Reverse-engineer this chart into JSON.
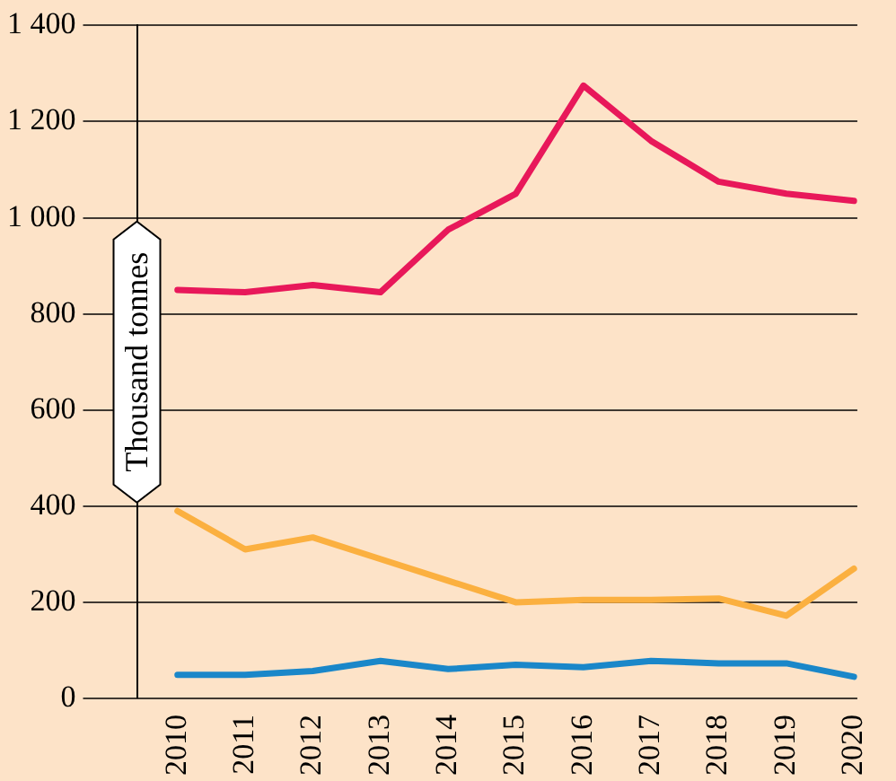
{
  "chart_data": {
    "type": "line",
    "ylabel": "Thousand tonnes",
    "x": [
      2010,
      2011,
      2012,
      2013,
      2014,
      2015,
      2016,
      2017,
      2018,
      2019,
      2020
    ],
    "xlim": [
      2009.4,
      2020.05
    ],
    "xticks": [
      2010,
      2011,
      2012,
      2013,
      2014,
      2015,
      2016,
      2017,
      2018,
      2019,
      2020
    ],
    "ylim": [
      0,
      1400
    ],
    "yticks": [
      0,
      {
        "value": 200,
        "label": "200"
      },
      {
        "value": 400,
        "label": "400"
      },
      {
        "value": 600,
        "label": "600"
      },
      {
        "value": 800,
        "label": "800"
      },
      {
        "value": 1000,
        "label": "1 000"
      },
      {
        "value": 1200,
        "label": "1 200"
      },
      {
        "value": 1400,
        "label": "1 400"
      }
    ],
    "grid": "y",
    "legend": false,
    "marker": "none",
    "line_style": "solid",
    "series": [
      {
        "color": "#e8185a",
        "values": [
          850,
          845,
          860,
          845,
          975,
          1050,
          1275,
          1160,
          1075,
          1050,
          1035
        ]
      },
      {
        "color": "#fbb040",
        "values": [
          390,
          310,
          335,
          290,
          245,
          200,
          205,
          205,
          208,
          172,
          270
        ]
      },
      {
        "color": "#1a87c9",
        "values": [
          49,
          49,
          57,
          78,
          61,
          70,
          65,
          78,
          73,
          73,
          45
        ]
      }
    ]
  }
}
